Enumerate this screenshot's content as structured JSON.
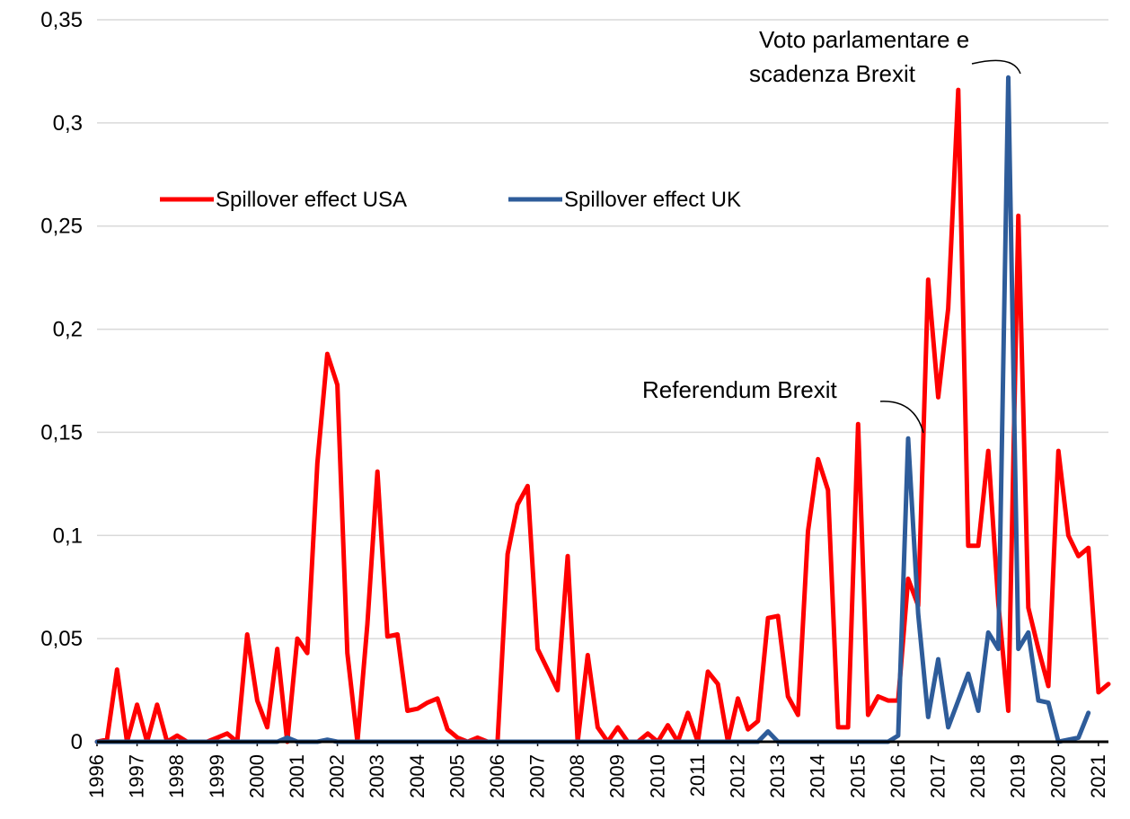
{
  "chart_data": {
    "type": "line",
    "title": "",
    "xlabel": "",
    "ylabel": "",
    "ylim": [
      0,
      0.35
    ],
    "y_ticks": [
      "0",
      "0,05",
      "0,1",
      "0,15",
      "0,2",
      "0,25",
      "0,3",
      "0,35"
    ],
    "x_ticks": [
      "1996",
      "1997",
      "1998",
      "1999",
      "2000",
      "2001",
      "2002",
      "2003",
      "2004",
      "2005",
      "2006",
      "2007",
      "2008",
      "2009",
      "2010",
      "2011",
      "2012",
      "2013",
      "2014",
      "2015",
      "2016",
      "2017",
      "2018",
      "2019",
      "2020",
      "2021"
    ],
    "grid": "horizontal",
    "legend_placement": "upper-left",
    "x_start": 1996.0,
    "x_step": 0.25,
    "series": [
      {
        "name": "Spillover effect USA",
        "color": "#ff0000",
        "values": [
          0,
          0.001,
          0.035,
          0,
          0.018,
          0,
          0.018,
          0,
          0.003,
          0,
          0,
          0,
          0.002,
          0.004,
          0,
          0.052,
          0.02,
          0.007,
          0.045,
          0,
          0.05,
          0.043,
          0.135,
          0.188,
          0.173,
          0.043,
          0,
          0.057,
          0.131,
          0.051,
          0.052,
          0.015,
          0.016,
          0.019,
          0.021,
          0.006,
          0.002,
          0,
          0.002,
          0,
          0,
          0.091,
          0.115,
          0.124,
          0.045,
          0.035,
          0.025,
          0.09,
          0,
          0.042,
          0.007,
          0,
          0.007,
          0,
          0,
          0.004,
          0,
          0.008,
          0,
          0.014,
          0,
          0.034,
          0.028,
          0,
          0.021,
          0.006,
          0.01,
          0.06,
          0.061,
          0.022,
          0.013,
          0.102,
          0.137,
          0.122,
          0.007,
          0.007,
          0.154,
          0.013,
          0.022,
          0.02,
          0.02,
          0.079,
          0.066,
          0.224,
          0.167,
          0.21,
          0.316,
          0.095,
          0.095,
          0.141,
          0.067,
          0.015,
          0.255,
          0.065,
          0.045,
          0.027,
          0.141,
          0.1,
          0.09,
          0.094,
          0.024,
          0.028
        ]
      },
      {
        "name": "Spillover effect UK",
        "color": "#2e5c9a",
        "values": [
          0,
          0,
          0,
          0,
          0,
          0,
          0,
          0,
          0,
          0,
          0,
          0,
          0,
          0,
          0,
          0,
          0,
          0,
          0,
          0.002,
          0,
          0,
          0,
          0.001,
          0,
          0,
          0,
          0,
          0,
          0,
          0,
          0,
          0,
          0,
          0,
          0,
          0,
          0,
          0,
          0,
          0,
          0,
          0,
          0,
          0,
          0,
          0,
          0,
          0,
          0,
          0,
          0,
          0,
          0,
          0,
          0,
          0,
          0,
          0,
          0,
          0,
          0,
          0,
          0,
          0,
          0,
          0,
          0.005,
          0,
          0,
          0,
          0,
          0,
          0,
          0,
          0,
          0,
          0,
          0,
          0,
          0.003,
          0.147,
          0.062,
          0.012,
          0.04,
          0.007,
          0.02,
          0.033,
          0.015,
          0.053,
          0.045,
          0.322,
          0.045,
          0.053,
          0.02,
          0.019,
          0,
          0.001,
          0.002,
          0.014
        ]
      }
    ],
    "annotations": [
      {
        "text": "Referendum Brexit",
        "x": 2016.5,
        "y": 0.147
      },
      {
        "text_lines": [
          "Voto parlamentare e",
          "scadenza Brexit"
        ],
        "x": 2019.0,
        "y": 0.322
      }
    ]
  }
}
